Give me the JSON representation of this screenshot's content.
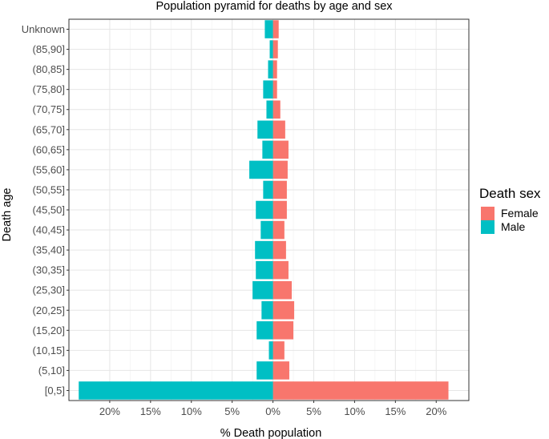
{
  "chart_data": {
    "type": "bar",
    "orientation": "horizontal",
    "title": "Population pyramid for deaths by age and sex",
    "xlabel": "% Death population",
    "ylabel": "Death age",
    "categories": [
      "[0,5]",
      "(5,10]",
      "(10,15]",
      "(15,20]",
      "(20,25]",
      "(25,30]",
      "(30,35]",
      "(35,40]",
      "(40,45]",
      "(45,50]",
      "(50,55]",
      "(55,60]",
      "(60,65]",
      "(65,70]",
      "(70,75]",
      "(75,80]",
      "(80,85]",
      "(85,90]",
      "Unknown"
    ],
    "series": [
      {
        "name": "Female",
        "color": "#F8766D",
        "values": [
          21.5,
          2.0,
          1.4,
          2.5,
          2.6,
          2.3,
          1.9,
          1.6,
          1.4,
          1.7,
          1.7,
          1.8,
          1.9,
          1.5,
          0.9,
          0.5,
          0.5,
          0.6,
          0.7
        ]
      },
      {
        "name": "Male",
        "color": "#00BFC4",
        "values": [
          -23.8,
          -2.0,
          -0.5,
          -2.0,
          -1.4,
          -2.5,
          -2.1,
          -2.2,
          -1.5,
          -2.1,
          -1.2,
          -2.9,
          -1.3,
          -1.9,
          -0.8,
          -1.2,
          -0.6,
          -0.4,
          -1.0
        ]
      }
    ],
    "xlim": [
      -25,
      24
    ],
    "xticks": [
      -20,
      -15,
      -10,
      -5,
      0,
      5,
      10,
      15,
      20
    ],
    "xtick_labels": [
      "20%",
      "15%",
      "10%",
      "5%",
      "0%",
      "5%",
      "10%",
      "15%",
      "20%"
    ],
    "legend": {
      "title": "Death sex",
      "position": "right",
      "entries": [
        "Female",
        "Male"
      ]
    },
    "grid": true
  }
}
